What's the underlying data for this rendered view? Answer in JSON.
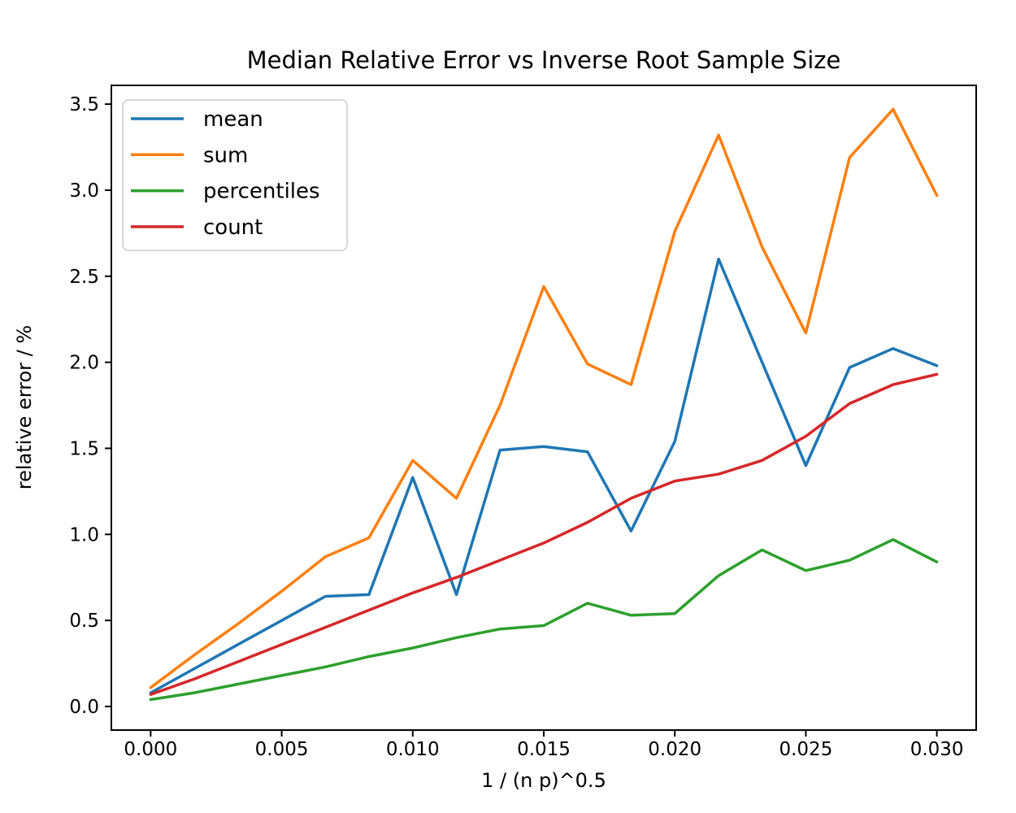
{
  "figure": {
    "background": "#ffffff"
  },
  "chart_data": {
    "type": "line",
    "title": "Median Relative Error vs Inverse Root Sample Size",
    "xlabel": "1 / (n p)^0.5",
    "ylabel": "relative error / %",
    "grid": false,
    "xlim": [
      -0.0015,
      0.0315
    ],
    "ylim": [
      -0.137,
      3.609
    ],
    "xtick_values": [
      0.0,
      0.005,
      0.01,
      0.015,
      0.02,
      0.025,
      0.03
    ],
    "xtick_labels": [
      "0.000",
      "0.005",
      "0.010",
      "0.015",
      "0.020",
      "0.025",
      "0.030"
    ],
    "ytick_values": [
      0.0,
      0.5,
      1.0,
      1.5,
      2.0,
      2.5,
      3.0,
      3.5
    ],
    "ytick_labels": [
      "0.0",
      "0.5",
      "1.0",
      "1.5",
      "2.0",
      "2.5",
      "3.0",
      "3.5"
    ],
    "x": [
      0.0,
      0.00167,
      0.00333,
      0.005,
      0.00667,
      0.00833,
      0.01,
      0.01167,
      0.01333,
      0.015,
      0.01667,
      0.01833,
      0.02,
      0.02167,
      0.02333,
      0.025,
      0.02667,
      0.02833,
      0.03
    ],
    "series": [
      {
        "name": "mean",
        "color": "#1f77b4",
        "values": [
          0.08,
          0.22,
          0.36,
          0.5,
          0.64,
          0.65,
          1.33,
          0.65,
          1.49,
          1.51,
          1.48,
          1.02,
          1.54,
          2.6,
          2.0,
          1.4,
          1.97,
          2.08,
          1.98
        ]
      },
      {
        "name": "sum",
        "color": "#ff7f0e",
        "values": [
          0.11,
          0.3,
          0.48,
          0.67,
          0.87,
          0.98,
          1.43,
          1.21,
          1.75,
          2.44,
          1.99,
          1.87,
          2.76,
          3.32,
          2.67,
          2.17,
          3.19,
          3.47,
          2.97
        ]
      },
      {
        "name": "percentiles",
        "color": "#2ca02c",
        "values": [
          0.04,
          0.08,
          0.13,
          0.18,
          0.23,
          0.29,
          0.34,
          0.4,
          0.45,
          0.47,
          0.6,
          0.53,
          0.54,
          0.76,
          0.91,
          0.79,
          0.85,
          0.97,
          0.84
        ]
      },
      {
        "name": "count",
        "color": "#d62728",
        "values": [
          0.07,
          0.16,
          0.26,
          0.36,
          0.46,
          0.56,
          0.66,
          0.75,
          0.85,
          0.95,
          1.07,
          1.21,
          1.31,
          1.35,
          1.43,
          1.57,
          1.76,
          1.87,
          1.93
        ]
      }
    ],
    "legend": {
      "position": "upper left",
      "entries": [
        "mean",
        "sum",
        "percentiles",
        "count"
      ],
      "border_color": "#cccccc",
      "background": "#ffffff"
    },
    "spine_color": "#000000",
    "text_color": "#000000"
  }
}
